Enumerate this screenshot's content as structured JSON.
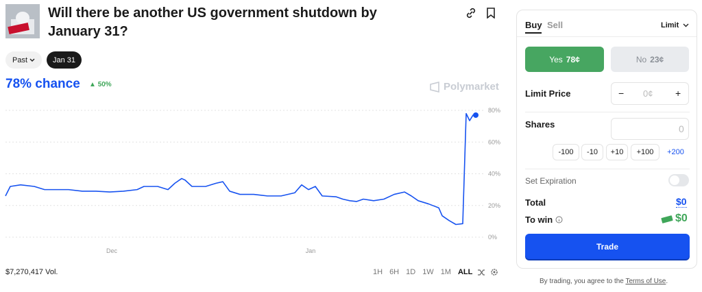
{
  "header": {
    "title": "Will there be another US government shutdown by January 31?"
  },
  "filters": {
    "past": "Past",
    "selected": "Jan 31"
  },
  "chance": {
    "label": "78% chance",
    "change": "50%"
  },
  "brand": "Polymarket",
  "chart_data": {
    "type": "line",
    "color": "#1652f0",
    "x": [
      0,
      7,
      22,
      42,
      57,
      72,
      92,
      112,
      132,
      152,
      172,
      192,
      202,
      222,
      237,
      247,
      257,
      262,
      272,
      292,
      307,
      317,
      327,
      342,
      362,
      382,
      402,
      422,
      432,
      442,
      452,
      462,
      482,
      492,
      502,
      512,
      522,
      537,
      552,
      567,
      582,
      592,
      602,
      617,
      632,
      637,
      647,
      657,
      667,
      672,
      677,
      682,
      686
    ],
    "values": [
      26,
      32,
      33,
      32,
      30,
      30,
      30,
      29,
      29,
      28.5,
      29,
      30,
      32,
      32,
      30,
      34,
      37,
      36,
      32,
      32,
      34,
      35,
      29,
      27,
      27,
      26,
      26,
      28,
      33,
      30,
      32,
      26,
      25.5,
      24,
      23,
      22.5,
      24,
      23,
      24,
      27,
      28.5,
      26,
      23,
      21,
      18.5,
      13.5,
      10.5,
      8,
      8.5,
      78,
      73.5,
      77,
      77
    ],
    "xlim": [
      0,
      700
    ],
    "xticks": [
      {
        "value": 155,
        "label": "Dec"
      },
      {
        "value": 445,
        "label": "Jan"
      }
    ],
    "ylim": [
      0,
      80
    ],
    "yticks": [
      {
        "value": 0,
        "label": "0%"
      },
      {
        "value": 20,
        "label": "20%"
      },
      {
        "value": 40,
        "label": "40%"
      },
      {
        "value": 60,
        "label": "60%"
      },
      {
        "value": 80,
        "label": "80%"
      }
    ],
    "grid": true
  },
  "volume": "$7,270,417 Vol.",
  "ranges": [
    "1H",
    "6H",
    "1D",
    "1W",
    "1M",
    "ALL"
  ],
  "trade": {
    "tabs": [
      "Buy",
      "Sell"
    ],
    "order_type": "Limit",
    "yes": {
      "label": "Yes",
      "price": "78¢"
    },
    "no": {
      "label": "No",
      "price": "23¢"
    },
    "limit_price": {
      "label": "Limit Price",
      "value": "0¢"
    },
    "shares": {
      "label": "Shares",
      "value": "0",
      "chips": [
        "-100",
        "-10",
        "+10",
        "+100",
        "+200"
      ]
    },
    "expiration": "Set Expiration",
    "total": {
      "label": "Total",
      "value": "$0"
    },
    "to_win": {
      "label": "To win",
      "value": "$0"
    },
    "button": "Trade",
    "footer": {
      "text": "By trading, you agree to the ",
      "link": "Terms of Use",
      "end": "."
    }
  }
}
